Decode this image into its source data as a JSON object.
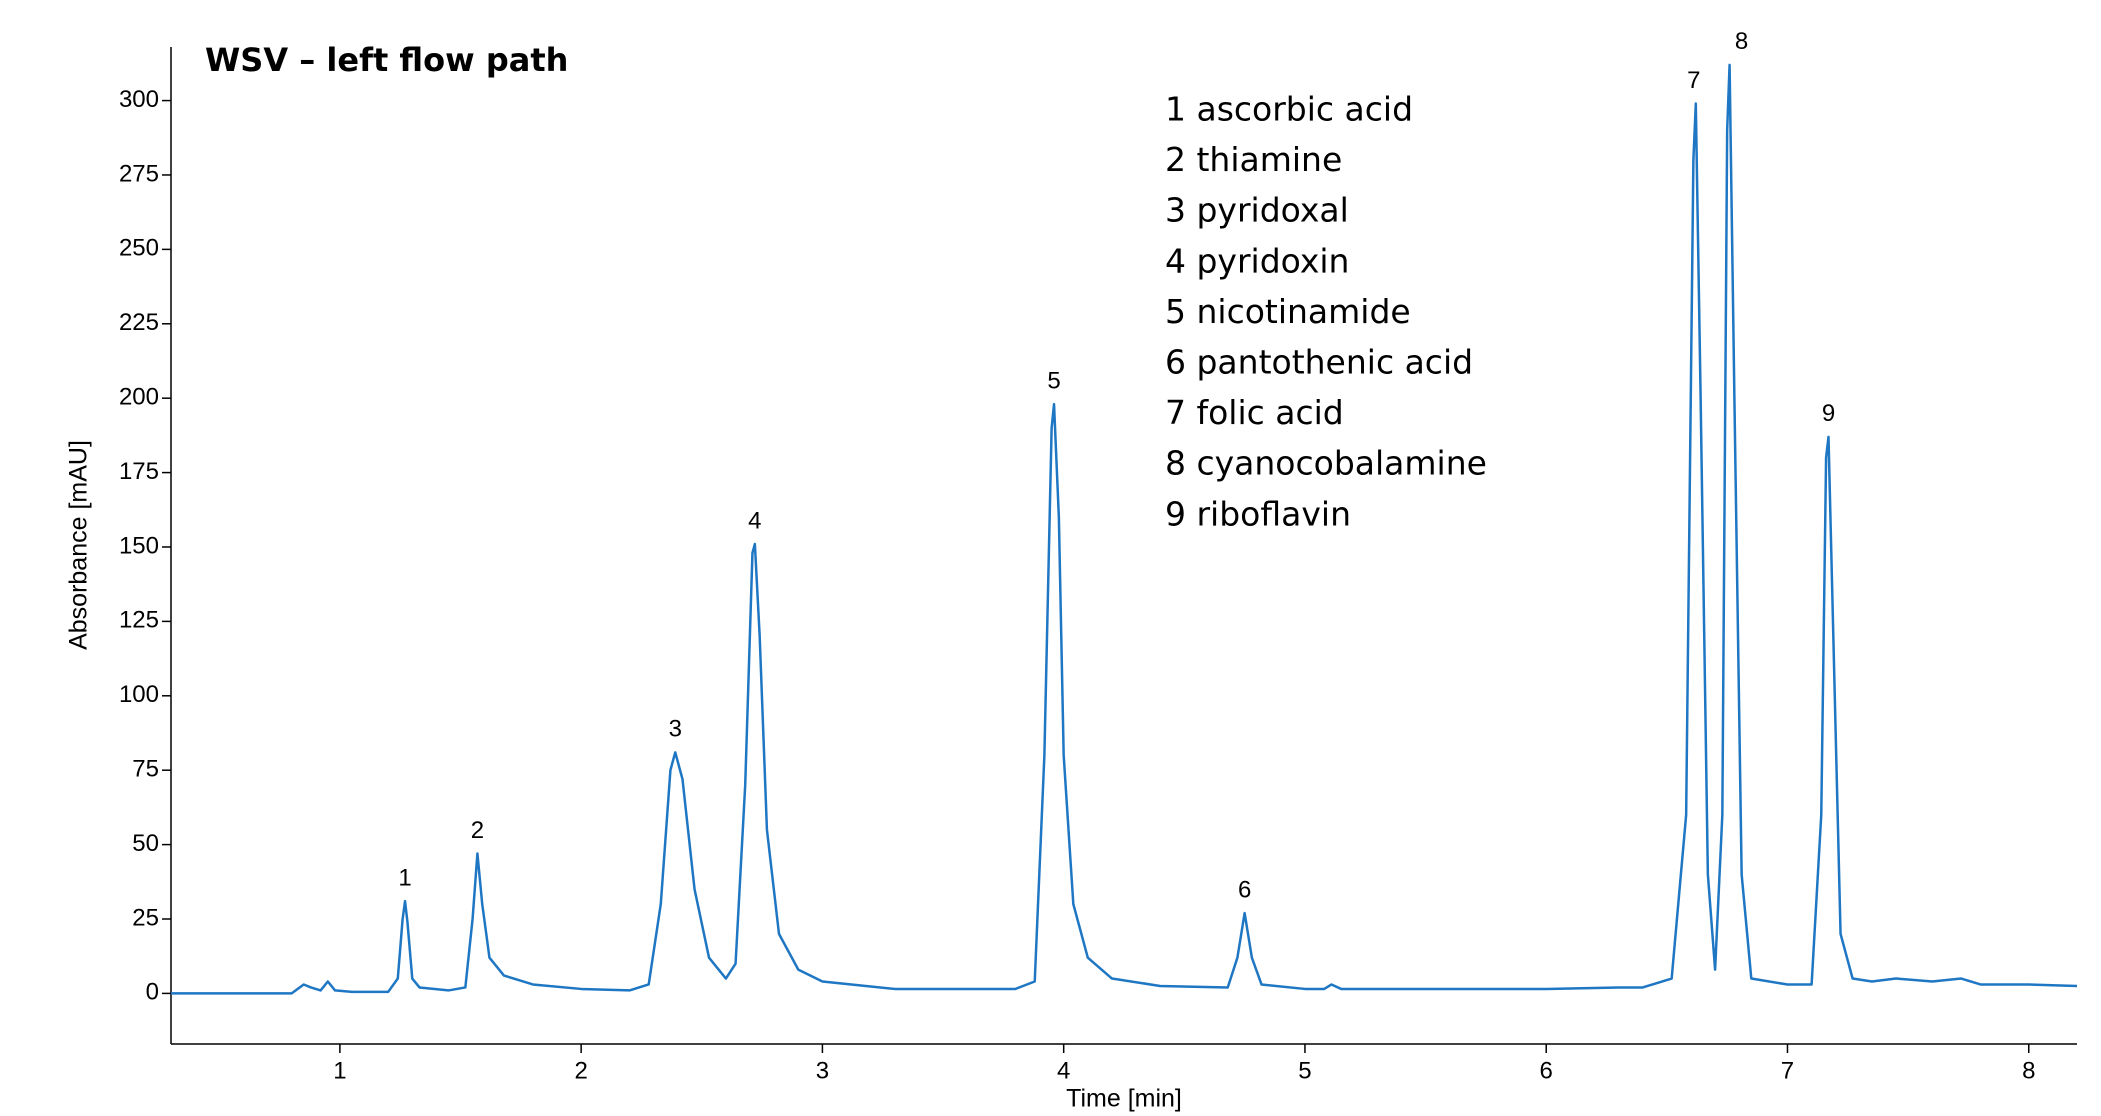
{
  "chart_data": {
    "type": "line",
    "title": "WSV – left flow path",
    "x_label": "Time [min]",
    "y_label": "Absorbance [mAU]",
    "color": "#1f77c4",
    "xlim": [
      0.3,
      8.2
    ],
    "xticks": [
      1,
      2,
      3,
      4,
      5,
      6,
      7,
      8
    ],
    "ylim": [
      -17,
      318
    ],
    "yticks": [
      0,
      25,
      50,
      75,
      100,
      125,
      150,
      175,
      200,
      225,
      250,
      275,
      300
    ],
    "x": [
      0.3,
      0.8,
      0.85,
      0.88,
      0.92,
      0.95,
      0.98,
      1.05,
      1.2,
      1.24,
      1.26,
      1.27,
      1.28,
      1.3,
      1.33,
      1.45,
      1.52,
      1.55,
      1.57,
      1.59,
      1.62,
      1.68,
      1.8,
      2.0,
      2.2,
      2.28,
      2.33,
      2.37,
      2.39,
      2.42,
      2.47,
      2.53,
      2.6,
      2.64,
      2.68,
      2.71,
      2.72,
      2.74,
      2.77,
      2.82,
      2.9,
      3.0,
      3.3,
      3.8,
      3.88,
      3.92,
      3.95,
      3.96,
      3.98,
      4.0,
      4.04,
      4.1,
      4.2,
      4.4,
      4.68,
      4.72,
      4.75,
      4.78,
      4.82,
      5.0,
      5.08,
      5.11,
      5.15,
      6.0,
      6.3,
      6.4,
      6.52,
      6.58,
      6.61,
      6.62,
      6.64,
      6.67,
      6.7,
      6.73,
      6.75,
      6.76,
      6.78,
      6.81,
      6.85,
      7.0,
      7.1,
      7.14,
      7.16,
      7.17,
      7.19,
      7.22,
      7.27,
      7.35,
      7.45,
      7.6,
      7.72,
      7.8,
      8.0,
      8.2
    ],
    "values": [
      0,
      0,
      3,
      2,
      1,
      4,
      1,
      0.5,
      0.5,
      5,
      25,
      31,
      24,
      5,
      2,
      1,
      2,
      25,
      47,
      30,
      12,
      6,
      3,
      1.5,
      1,
      3,
      30,
      75,
      81,
      72,
      35,
      12,
      5,
      10,
      70,
      148,
      151,
      120,
      55,
      20,
      8,
      4,
      1.5,
      1.5,
      4,
      80,
      190,
      198,
      160,
      80,
      30,
      12,
      5,
      2.5,
      2,
      12,
      27,
      12,
      3,
      1.5,
      1.5,
      3,
      1.5,
      1.5,
      2,
      2,
      5,
      60,
      280,
      299,
      200,
      40,
      8,
      60,
      290,
      312,
      200,
      40,
      5,
      3,
      3,
      60,
      180,
      187,
      120,
      20,
      5,
      4,
      5,
      4,
      5,
      3,
      3,
      2.5
    ],
    "peaks": [
      {
        "label": "1",
        "x": 1.27,
        "y": 31
      },
      {
        "label": "2",
        "x": 1.57,
        "y": 47
      },
      {
        "label": "3",
        "x": 2.39,
        "y": 81
      },
      {
        "label": "4",
        "x": 2.72,
        "y": 151
      },
      {
        "label": "5",
        "x": 3.96,
        "y": 198
      },
      {
        "label": "6",
        "x": 4.75,
        "y": 27
      },
      {
        "label": "7",
        "x": 6.62,
        "y": 299
      },
      {
        "label": "8",
        "x": 6.76,
        "y": 312
      },
      {
        "label": "9",
        "x": 7.17,
        "y": 187
      }
    ],
    "compounds": [
      "1 ascorbic acid",
      "2 thiamine",
      "3 pyridoxal",
      "4 pyridoxin",
      "5 nicotinamide",
      "6 pantothenic acid",
      "7 folic acid",
      "8 cyanocobalamine",
      "9 riboflavin"
    ]
  }
}
